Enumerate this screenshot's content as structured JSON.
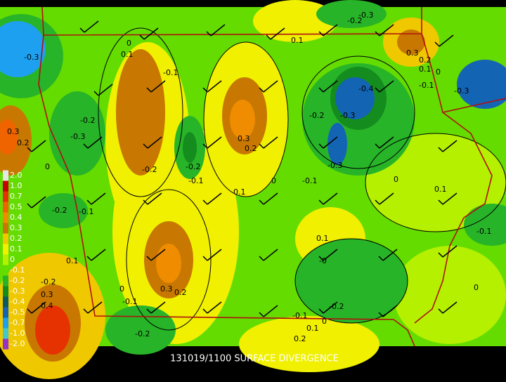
{
  "caption": "131019/1100 SURFACE DIVERGENCE",
  "colorbar": [
    {
      "label": "2.0",
      "color": "#e6e6e6"
    },
    {
      "label": "1.0",
      "color": "#c80000"
    },
    {
      "label": "0.7",
      "color": "#e63200"
    },
    {
      "label": "0.5",
      "color": "#f06400"
    },
    {
      "label": "0.4",
      "color": "#f08c00"
    },
    {
      "label": "0.3",
      "color": "#c87800"
    },
    {
      "label": "0.2",
      "color": "#f0c800"
    },
    {
      "label": "0.1",
      "color": "#f0f000"
    },
    {
      "label": "0",
      "color": "#b4f000"
    },
    {
      "label": "-0.1",
      "color": "#64dc00"
    },
    {
      "label": "-0.2",
      "color": "#28b428"
    },
    {
      "label": "-0.3",
      "color": "#148c1e"
    },
    {
      "label": "-0.4",
      "color": "#0a5a64"
    },
    {
      "label": "-0.5",
      "color": "#1464b4"
    },
    {
      "label": "-0.7",
      "color": "#1ea0f0"
    },
    {
      "label": "-1.0",
      "color": "#46c8c8"
    },
    {
      "label": "-2.0",
      "color": "#9632c8"
    }
  ],
  "contour_labels": [
    "0",
    "0.1",
    "-0.1",
    "-0.3",
    "-0.2",
    "-0.3",
    "0.3",
    "0.2",
    "0",
    "-0.2",
    "-0.2",
    "-0.1",
    "0.3",
    "0.2",
    "0.1",
    "0",
    "-0.1",
    "-0.2",
    "-0.3",
    "-0.4",
    "-0.3",
    "0.1",
    "0.3",
    "0.2",
    "0.1",
    "0",
    "-0.1",
    "-0.3",
    "0",
    "0.1",
    "-0.2",
    "-0.1",
    "0.1",
    "0.1",
    "-0",
    "0.3",
    "0.2",
    "0",
    "-0.1",
    "-0.2",
    "0.3",
    "0.4",
    "-0.1",
    "-0.2",
    "0",
    "0.1",
    "0.2",
    "-0.2",
    "-0.1",
    "0",
    "-0.3",
    "-0.2"
  ]
}
